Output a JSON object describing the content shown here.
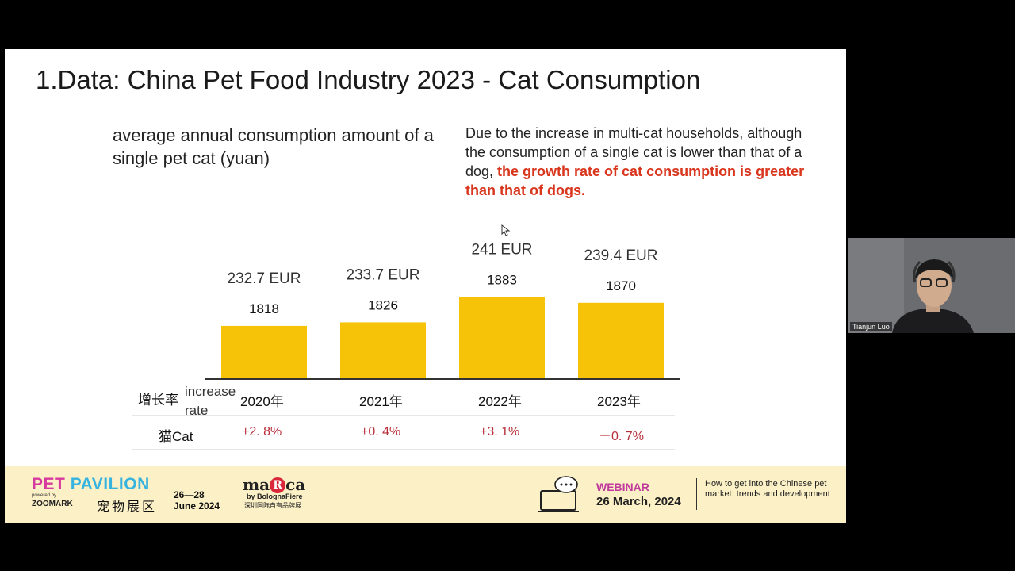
{
  "slide": {
    "title": "1.Data: China Pet Food Industry 2023 - Cat Consumption",
    "subtitle": "average annual consumption amount of a single pet cat (yuan)",
    "note_plain": "Due to the increase in multi-cat households, although the consumption of a single cat is lower than that of a dog, ",
    "note_highlight": "the growth rate of cat consumption is greater than that of dogs."
  },
  "chart_data": {
    "type": "bar",
    "categories": [
      "2020年",
      "2021年",
      "2022年",
      "2023年"
    ],
    "values": [
      1818,
      1826,
      1883,
      1870
    ],
    "eur_labels": [
      "232.7 EUR",
      "233.7 EUR",
      "241 EUR",
      "239.4 EUR"
    ],
    "value_labels": [
      "1818",
      "1826",
      "1883",
      "1870"
    ],
    "bar_color": "#f7c309",
    "growth_row_label_cn": "增长率",
    "growth_row_label_en": "increase rate",
    "cat_row_label": "猫Cat",
    "growth_rates": [
      "+2. 8%",
      "+0. 4%",
      "+3. 1%",
      "－0. 7%"
    ]
  },
  "footer": {
    "pet": "PET",
    "pavilion": "PAVILION",
    "powered_by": "powered by",
    "zoomark": "ZOOMARK",
    "cn_name": "宠物展区",
    "dates_line1": "26—28",
    "dates_line2": "June 2024",
    "marca_left": "ma",
    "marca_r": "R",
    "marca_right": "ca",
    "marca_by": "by BolognaFiere",
    "marca_cn": "深圳国际自有品牌展",
    "webinar_label": "WEBINAR",
    "webinar_date": "26 March, 2024",
    "topic": "How to get into the Chinese pet market: trends and development"
  },
  "participant": {
    "name": "Tianjun Luo"
  },
  "colors": {
    "accent_red": "#d9361e",
    "pet_pink": "#d63a9e",
    "pavilion_blue": "#37b3e0",
    "footer_bg": "#fbf0c6"
  }
}
